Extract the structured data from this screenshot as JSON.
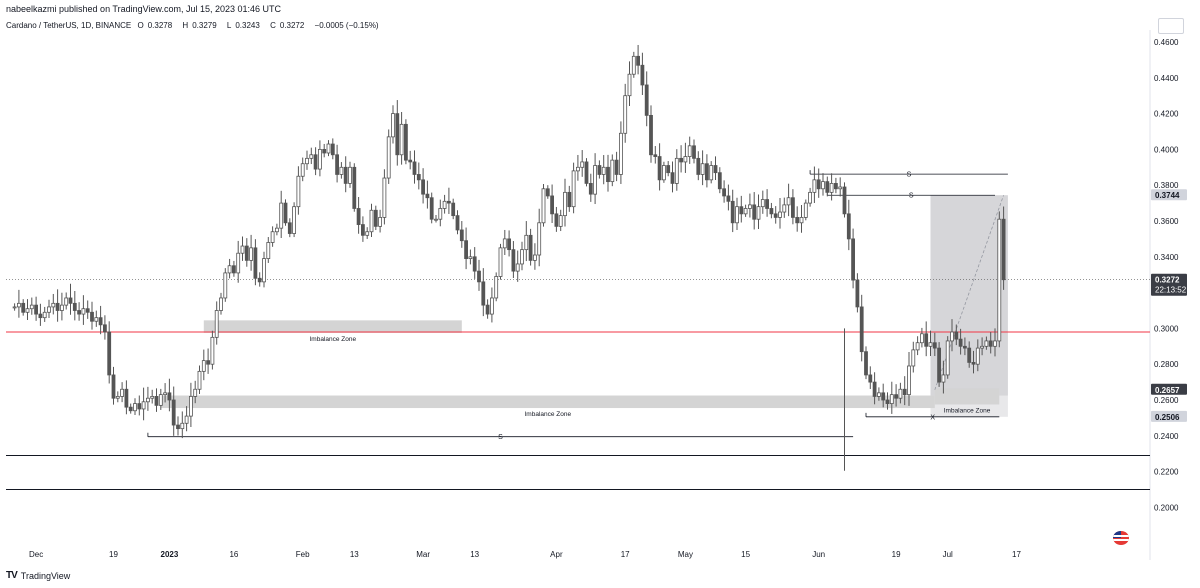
{
  "header": {
    "publisher": "nabeelkazmi published on TradingView.com, Jul 15, 2023 01:46 UTC"
  },
  "symbol": {
    "name": "Cardano / TetherUS, 1D, BINANCE",
    "open_label": "O",
    "open": "0.3278",
    "high_label": "H",
    "high": "0.3279",
    "low_label": "L",
    "low": "0.3243",
    "close_label": "C",
    "close": "0.3272",
    "change": "−0.0005 (−0.15%)"
  },
  "footer": {
    "brand": "TradingView",
    "logo": "tv-logo-icon"
  },
  "chart_data": {
    "type": "candlestick",
    "ylim": [
      0.185,
      0.47
    ],
    "y_ticks": [
      "0.4600",
      "0.4400",
      "0.4200",
      "0.4000",
      "0.3800",
      "0.3600",
      "0.3400",
      "0.3000",
      "0.2800",
      "0.2600",
      "0.2400",
      "0.2200",
      "0.2000"
    ],
    "x_ticks": [
      "Dec",
      "19",
      "2023",
      "16",
      "Feb",
      "13",
      "Mar",
      "13",
      "Apr",
      "17",
      "May",
      "15",
      "Jun",
      "19",
      "Jul",
      "17"
    ],
    "price_labels": [
      {
        "value": 0.3744,
        "text": "0.3744",
        "style": "gray"
      },
      {
        "value": 0.3272,
        "text": "0.3272",
        "time": "22:13:52",
        "style": "dark"
      },
      {
        "value": 0.2657,
        "text": "0.2657",
        "style": "dark"
      },
      {
        "value": 0.2506,
        "text": "0.2506",
        "style": "gray"
      }
    ],
    "last_price": 0.3272,
    "colors": {
      "candle": "#555555",
      "red_line": "#f23645",
      "zone": "#d4d4d4",
      "axis_text": "#131722"
    },
    "horizontal_lines": [
      {
        "value": 0.298,
        "color": "red"
      },
      {
        "value": 0.229,
        "color": "dark"
      },
      {
        "value": 0.21,
        "color": "dark"
      }
    ],
    "zones": [
      {
        "label": "Imbalance Zone",
        "y_top": 0.3045,
        "y_bottom": 0.2975,
        "x_from": "Jan 9",
        "x_to": "Mar 10"
      },
      {
        "label": "Imbalance Zone",
        "y_top": 0.2625,
        "y_bottom": 0.2555,
        "x_from": "Dec 30",
        "x_to": "Jun 28"
      },
      {
        "label": "Imbalance Zone",
        "y_top": 0.2665,
        "y_bottom": 0.2575,
        "x_from": "Jun 28",
        "x_to": "Jul 13"
      }
    ],
    "level_marks": [
      {
        "label": "S",
        "value": 0.3862,
        "x_from": "May 30",
        "x_to": "Jul 15"
      },
      {
        "label": "S",
        "value": 0.3744,
        "x_from": "Jun 3",
        "x_to": "Jul 12"
      },
      {
        "label": "S",
        "value": 0.2395,
        "x_from": "Dec 27",
        "x_to": "Jun 9"
      },
      {
        "label": "X",
        "value": 0.2506,
        "x_from": "Jun 12",
        "x_to": "Jul 13"
      }
    ],
    "projection_box": {
      "y_top": 0.3744,
      "y_bottom": 0.2506
    },
    "closes": [
      0.312,
      0.314,
      0.309,
      0.311,
      0.313,
      0.308,
      0.306,
      0.309,
      0.312,
      0.314,
      0.31,
      0.313,
      0.317,
      0.314,
      0.31,
      0.308,
      0.311,
      0.309,
      0.304,
      0.306,
      0.302,
      0.298,
      0.274,
      0.261,
      0.262,
      0.266,
      0.256,
      0.254,
      0.258,
      0.255,
      0.259,
      0.261,
      0.262,
      0.257,
      0.263,
      0.264,
      0.26,
      0.246,
      0.244,
      0.247,
      0.251,
      0.262,
      0.266,
      0.276,
      0.282,
      0.28,
      0.295,
      0.31,
      0.317,
      0.331,
      0.335,
      0.331,
      0.342,
      0.346,
      0.338,
      0.345,
      0.328,
      0.326,
      0.339,
      0.348,
      0.354,
      0.356,
      0.37,
      0.359,
      0.353,
      0.368,
      0.385,
      0.392,
      0.395,
      0.397,
      0.389,
      0.4,
      0.398,
      0.403,
      0.397,
      0.386,
      0.39,
      0.381,
      0.39,
      0.367,
      0.358,
      0.352,
      0.354,
      0.366,
      0.357,
      0.362,
      0.384,
      0.407,
      0.42,
      0.397,
      0.414,
      0.394,
      0.393,
      0.386,
      0.383,
      0.375,
      0.373,
      0.361,
      0.361,
      0.367,
      0.371,
      0.37,
      0.363,
      0.355,
      0.349,
      0.339,
      0.34,
      0.332,
      0.326,
      0.313,
      0.308,
      0.317,
      0.329,
      0.345,
      0.35,
      0.344,
      0.332,
      0.336,
      0.344,
      0.352,
      0.338,
      0.341,
      0.359,
      0.378,
      0.374,
      0.364,
      0.357,
      0.363,
      0.376,
      0.368,
      0.388,
      0.39,
      0.393,
      0.381,
      0.375,
      0.391,
      0.386,
      0.39,
      0.382,
      0.394,
      0.386,
      0.409,
      0.43,
      0.442,
      0.452,
      0.447,
      0.436,
      0.419,
      0.397,
      0.396,
      0.383,
      0.391,
      0.387,
      0.381,
      0.395,
      0.393,
      0.396,
      0.402,
      0.395,
      0.386,
      0.392,
      0.383,
      0.391,
      0.387,
      0.378,
      0.374,
      0.371,
      0.359,
      0.368,
      0.364,
      0.367,
      0.369,
      0.361,
      0.368,
      0.372,
      0.367,
      0.364,
      0.362,
      0.365,
      0.369,
      0.373,
      0.362,
      0.359,
      0.362,
      0.37,
      0.376,
      0.383,
      0.378,
      0.382,
      0.376,
      0.381,
      0.378,
      0.379,
      0.364,
      0.35,
      0.327,
      0.312,
      0.287,
      0.274,
      0.27,
      0.262,
      0.264,
      0.26,
      0.258,
      0.263,
      0.261,
      0.266,
      0.263,
      0.279,
      0.288,
      0.292,
      0.297,
      0.29,
      0.292,
      0.289,
      0.27,
      0.274,
      0.293,
      0.298,
      0.294,
      0.29,
      0.289,
      0.281,
      0.28,
      0.289,
      0.29,
      0.293,
      0.29,
      0.293,
      0.361,
      0.3272
    ]
  }
}
